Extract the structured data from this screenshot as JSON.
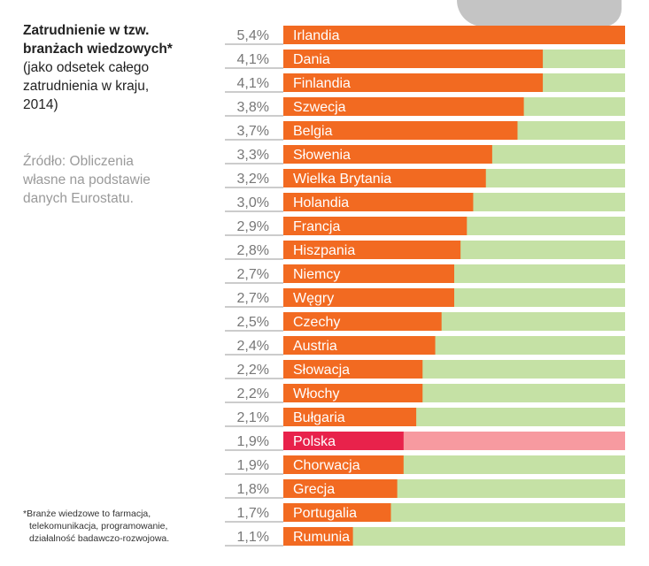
{
  "chart_data": {
    "type": "bar",
    "orientation": "horizontal",
    "title_lines": [
      "Zatrudnienie w tzw.",
      "branżach wiedzowych*"
    ],
    "subtitle_lines": [
      "(jako odsetek całego",
      "zatrudnienia w kraju,",
      "2014)"
    ],
    "source_lines": [
      "Źródło: Obliczenia",
      "własne na podstawie",
      "danych Eurostatu."
    ],
    "footnote_mark": "*",
    "footnote_lines": [
      "Branże wiedzowe to farmacja,",
      "telekomunikacja, programowanie,",
      "działalność badawczo-rozwojowa."
    ],
    "xlim": [
      0,
      5.4
    ],
    "categories": [
      "Irlandia",
      "Dania",
      "Finlandia",
      "Szwecja",
      "Belgia",
      "Słowenia",
      "Wielka Brytania",
      "Holandia",
      "Francja",
      "Hiszpania",
      "Niemcy",
      "Węgry",
      "Czechy",
      "Austria",
      "Słowacja",
      "Włochy",
      "Bułgaria",
      "Polska",
      "Chorwacja",
      "Grecja",
      "Portugalia",
      "Rumunia"
    ],
    "values": [
      5.4,
      4.1,
      4.1,
      3.8,
      3.7,
      3.3,
      3.2,
      3.0,
      2.9,
      2.8,
      2.7,
      2.7,
      2.5,
      2.4,
      2.2,
      2.2,
      2.1,
      1.9,
      1.9,
      1.8,
      1.7,
      1.1
    ],
    "value_labels": [
      "5,4%",
      "4,1%",
      "4,1%",
      "3,8%",
      "3,7%",
      "3,3%",
      "3,2%",
      "3,0%",
      "2,9%",
      "2,8%",
      "2,7%",
      "2,7%",
      "2,5%",
      "2,4%",
      "2,2%",
      "2,2%",
      "2,1%",
      "1,9%",
      "1,9%",
      "1,8%",
      "1,7%",
      "1,1%"
    ],
    "highlight": "Polska",
    "colors": {
      "bar": "#f26a21",
      "track": "#c5e1a5",
      "highlight_bar": "#e8224b",
      "highlight_track": "#f79aa0",
      "value_text": "#777777",
      "label_text": "#ffffff"
    }
  }
}
